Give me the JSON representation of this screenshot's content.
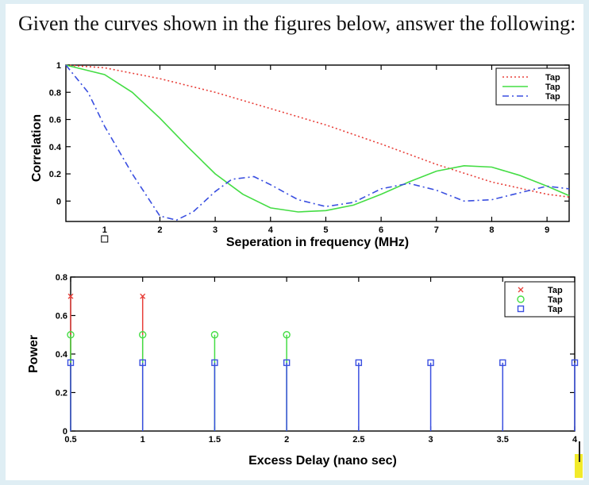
{
  "question": "Given the curves shown in the figures below, answer the following:",
  "chart_data": [
    {
      "type": "line",
      "xlabel": "Seperation in frequency (MHz)",
      "ylabel": "Correlation",
      "xlim": [
        0.3,
        9.4
      ],
      "ylim": [
        -0.15,
        1.0
      ],
      "xticks": [
        "2",
        "3",
        "4",
        "5",
        "6",
        "7",
        "8",
        "9"
      ],
      "xtick_values": [
        2,
        3,
        4,
        5,
        6,
        7,
        8,
        9
      ],
      "stray_tick_label": "1",
      "yticks": [
        "1",
        "0.8",
        "0.6",
        "0.4",
        "0.2",
        "0"
      ],
      "ytick_values": [
        1,
        0.8,
        0.6,
        0.4,
        0.2,
        0
      ],
      "legend_position": "top-right",
      "series": [
        {
          "name": "Tap",
          "color": "#e8403a",
          "style": "dotted",
          "x": [
            0.3,
            1,
            2,
            3,
            4,
            5,
            6,
            7,
            8,
            9,
            9.4
          ],
          "y": [
            1.0,
            0.98,
            0.9,
            0.8,
            0.68,
            0.56,
            0.42,
            0.27,
            0.14,
            0.05,
            0.03
          ]
        },
        {
          "name": "Tap",
          "color": "#44dd44",
          "style": "solid",
          "x": [
            0.3,
            1.0,
            1.5,
            2.0,
            2.5,
            3.0,
            3.5,
            4.0,
            4.5,
            5.0,
            5.5,
            6.0,
            6.5,
            7.0,
            7.5,
            8.0,
            8.5,
            9.0,
            9.4
          ],
          "y": [
            1.0,
            0.93,
            0.8,
            0.61,
            0.4,
            0.2,
            0.05,
            -0.05,
            -0.08,
            -0.07,
            -0.03,
            0.05,
            0.14,
            0.22,
            0.26,
            0.25,
            0.19,
            0.11,
            0.04
          ]
        },
        {
          "name": "Tap",
          "color": "#3a4fe0",
          "style": "dashdot",
          "x": [
            0.3,
            0.7,
            1.0,
            1.5,
            2.0,
            2.3,
            2.6,
            3.0,
            3.3,
            3.7,
            4.0,
            4.5,
            5.0,
            5.5,
            6.0,
            6.5,
            7.0,
            7.5,
            8.0,
            8.5,
            9.0,
            9.4
          ],
          "y": [
            1.0,
            0.8,
            0.55,
            0.2,
            -0.11,
            -0.14,
            -0.08,
            0.07,
            0.16,
            0.18,
            0.12,
            0.01,
            -0.04,
            -0.01,
            0.09,
            0.13,
            0.08,
            0.0,
            0.01,
            0.06,
            0.11,
            0.09
          ]
        }
      ]
    },
    {
      "type": "stem",
      "xlabel": "Excess Delay (nano sec)",
      "ylabel": "Power",
      "xlim": [
        0.5,
        4.0
      ],
      "ylim": [
        0,
        0.8
      ],
      "xticks": [
        "0.5",
        "1",
        "1.5",
        "2",
        "2.5",
        "3",
        "3.5",
        "4"
      ],
      "xtick_values": [
        0.5,
        1,
        1.5,
        2,
        2.5,
        3,
        3.5,
        4
      ],
      "yticks": [
        "0.8",
        "0.6",
        "0.4",
        "0.2",
        "0"
      ],
      "ytick_values": [
        0.8,
        0.6,
        0.4,
        0.2,
        0
      ],
      "legend_position": "top-right",
      "series": [
        {
          "name": "Tap",
          "color": "#e8403a",
          "marker": "x",
          "x": [
            0.5,
            1.0
          ],
          "y": [
            0.7,
            0.7
          ]
        },
        {
          "name": "Tap",
          "color": "#44dd44",
          "marker": "o",
          "x": [
            0.5,
            1.0,
            1.5,
            2.0
          ],
          "y": [
            0.5,
            0.5,
            0.5,
            0.5
          ]
        },
        {
          "name": "Tap",
          "color": "#3a4fe0",
          "marker": "s",
          "x": [
            0.5,
            1.0,
            1.5,
            2.0,
            2.5,
            3.0,
            3.5,
            4.0
          ],
          "y": [
            0.355,
            0.355,
            0.355,
            0.355,
            0.355,
            0.355,
            0.355,
            0.355
          ]
        }
      ]
    }
  ]
}
